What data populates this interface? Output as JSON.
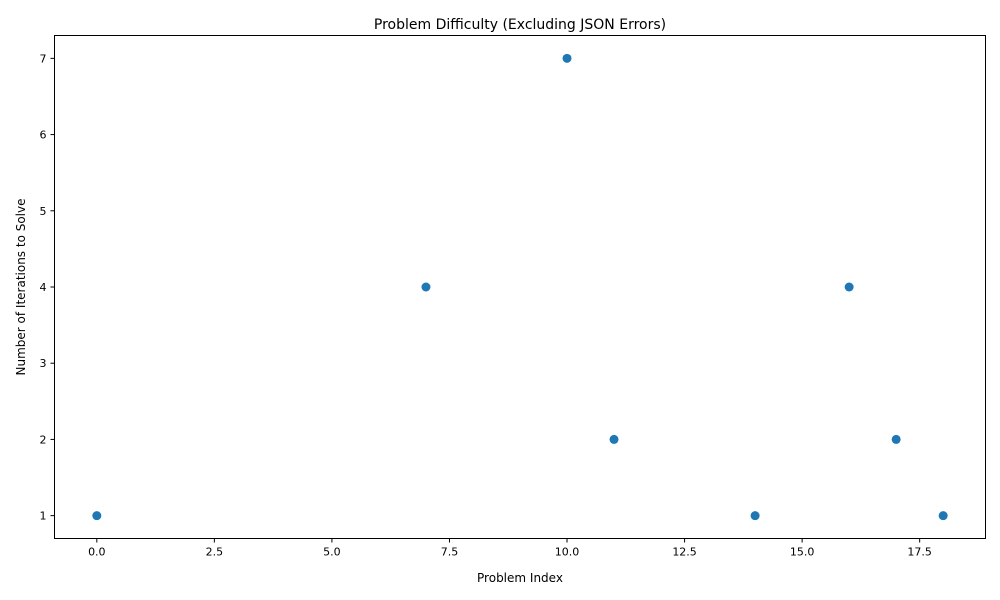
{
  "chart_data": {
    "type": "scatter",
    "title": "Problem Difficulty (Excluding JSON Errors)",
    "xlabel": "Problem Index",
    "ylabel": "Number of Iterations to Solve",
    "x": [
      0,
      7,
      10,
      11,
      14,
      16,
      17,
      18
    ],
    "y": [
      1,
      4,
      7,
      2,
      1,
      4,
      2,
      1
    ],
    "xlim": [
      -0.9,
      18.9
    ],
    "ylim": [
      0.7,
      7.3
    ],
    "xticks": [
      0.0,
      2.5,
      5.0,
      7.5,
      10.0,
      12.5,
      15.0,
      17.5
    ],
    "xtick_labels": [
      "0.0",
      "2.5",
      "5.0",
      "7.5",
      "10.0",
      "12.5",
      "15.0",
      "17.5"
    ],
    "yticks": [
      1,
      2,
      3,
      4,
      5,
      6,
      7
    ],
    "ytick_labels": [
      "1",
      "2",
      "3",
      "4",
      "5",
      "6",
      "7"
    ],
    "marker_color": "#1f77b4",
    "grid": false,
    "legend": false
  }
}
